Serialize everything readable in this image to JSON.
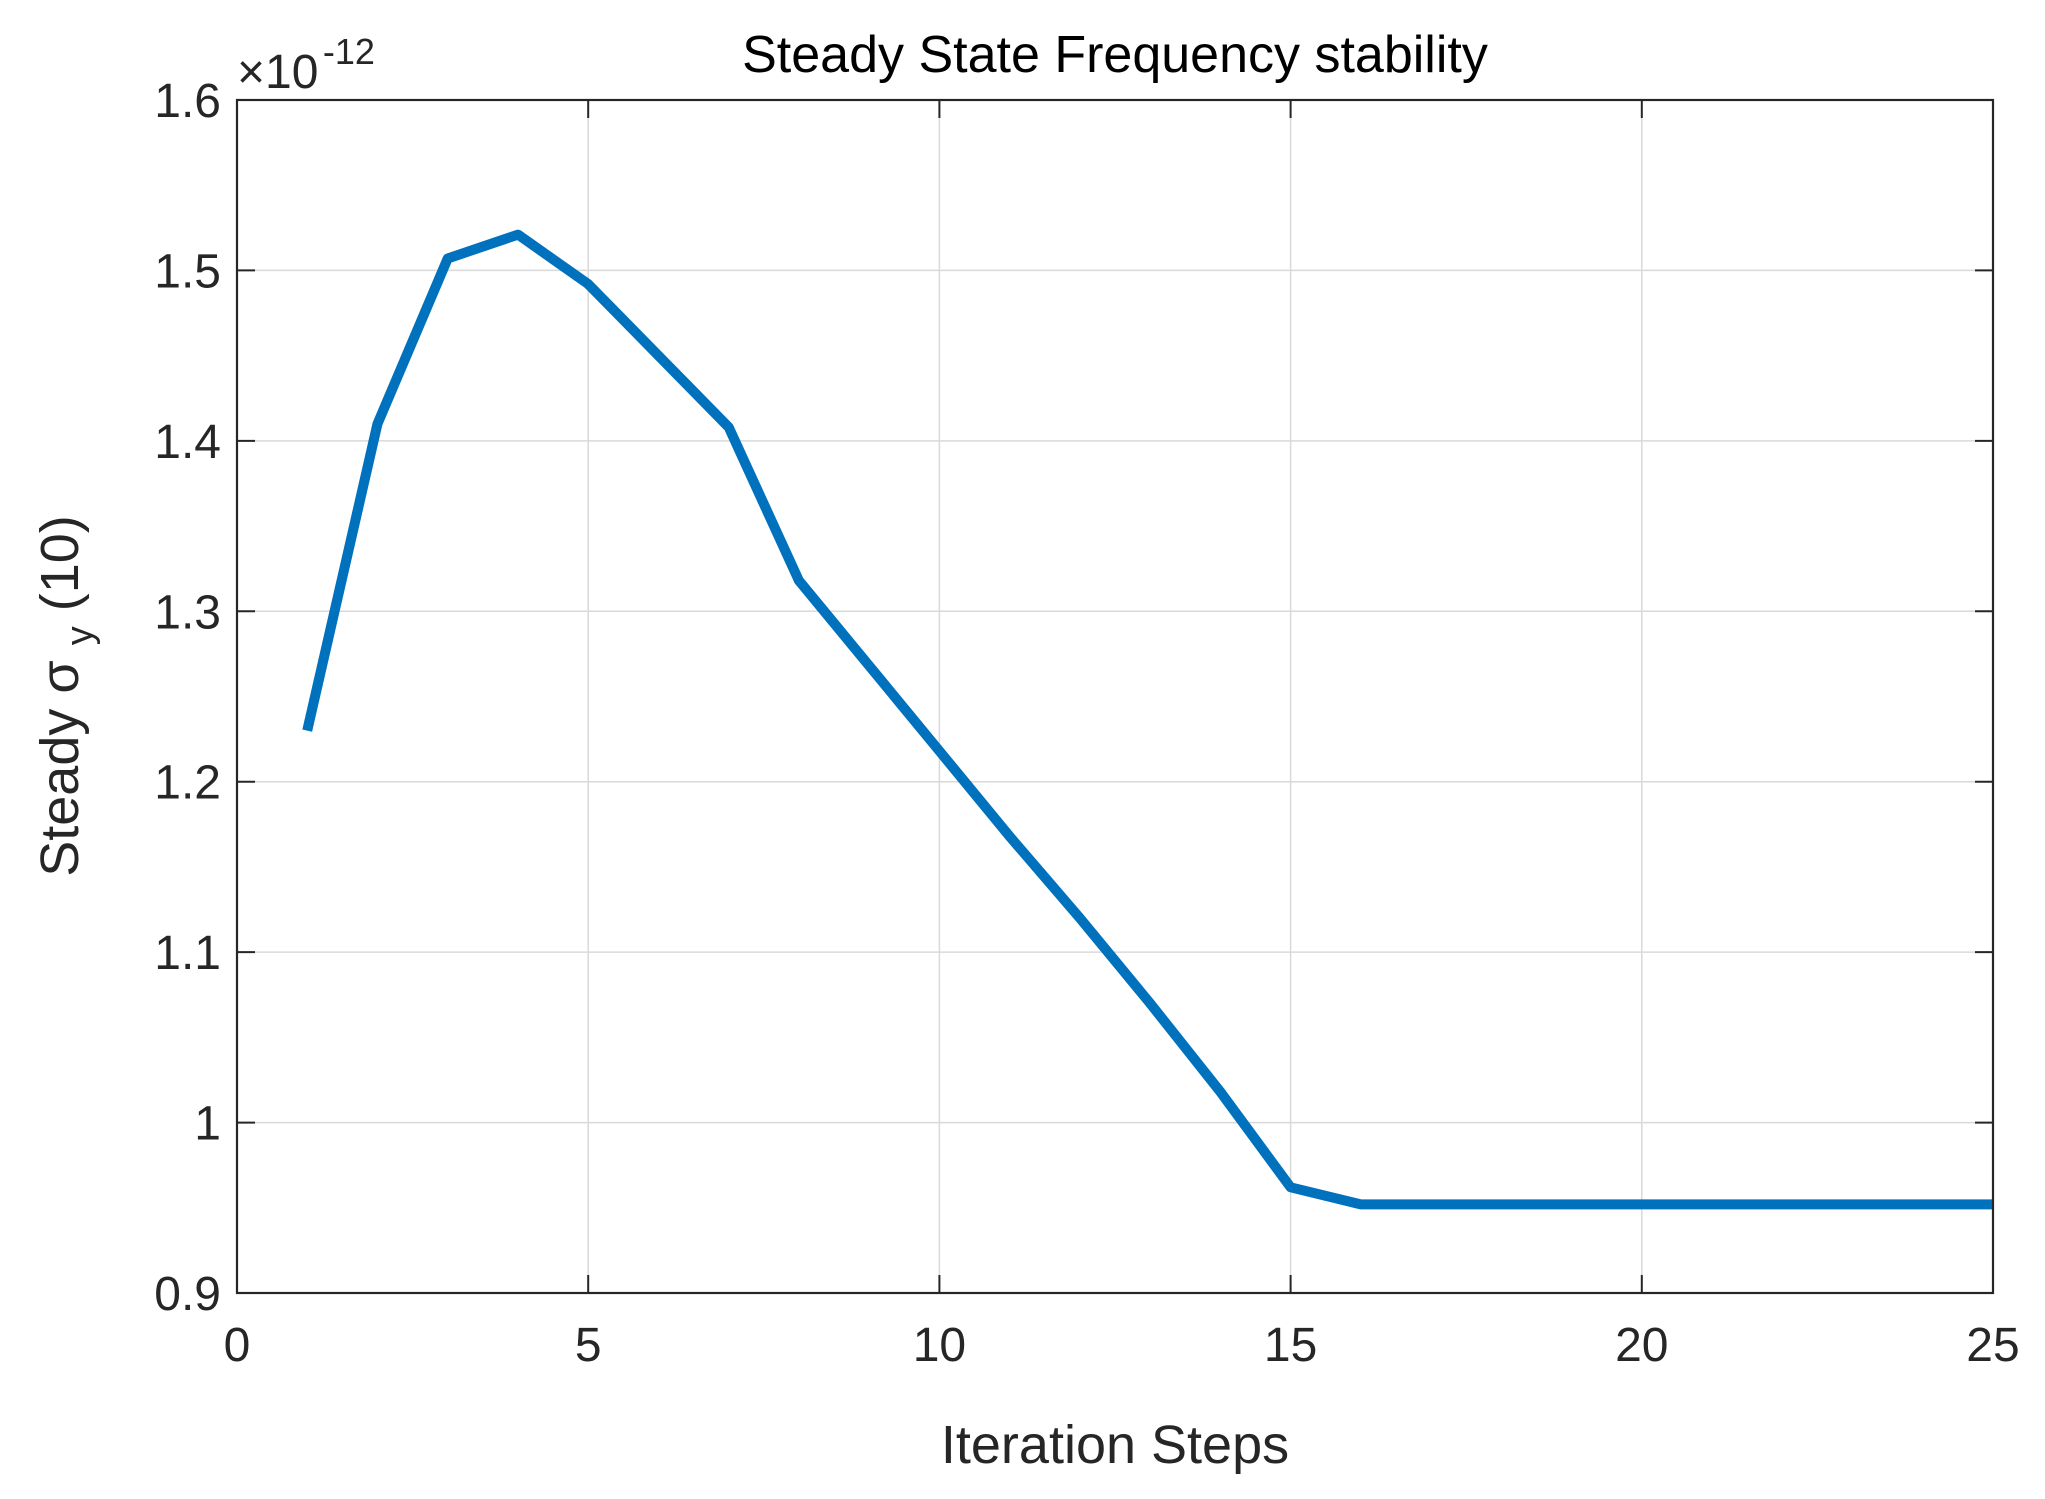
{
  "chart_data": {
    "type": "line",
    "title": "Steady State Frequency stability",
    "xlabel": "Iteration Steps",
    "ylabel": {
      "prefix": "Steady σ",
      "subscript": "y",
      "suffix": "(10)"
    },
    "y_multiplier": {
      "base": "×10",
      "exponent": "-12"
    },
    "xlim": [
      0,
      25
    ],
    "ylim": [
      0.9,
      1.6
    ],
    "x_ticks": [
      0,
      5,
      10,
      15,
      20,
      25
    ],
    "x_tick_labels": [
      "0",
      "5",
      "10",
      "15",
      "20",
      "25"
    ],
    "y_ticks": [
      0.9,
      1.0,
      1.1,
      1.2,
      1.3,
      1.4,
      1.5,
      1.6
    ],
    "y_tick_labels": [
      "0.9",
      "1",
      "1.1",
      "1.2",
      "1.3",
      "1.4",
      "1.5",
      "1.6"
    ],
    "grid": true,
    "series": [
      {
        "color": "#0072BD",
        "x": [
          1,
          2,
          3,
          4,
          5,
          6,
          7,
          8,
          9,
          10,
          11,
          12,
          13,
          14,
          15,
          16,
          17,
          18,
          19,
          20,
          21,
          22,
          23,
          24,
          25
        ],
        "y": [
          1.23,
          1.41,
          1.507,
          1.521,
          1.492,
          1.45,
          1.408,
          1.318,
          1.268,
          1.218,
          1.168,
          1.12,
          1.07,
          1.018,
          0.962,
          0.952,
          0.952,
          0.952,
          0.952,
          0.952,
          0.952,
          0.952,
          0.952,
          0.952,
          0.952
        ]
      }
    ]
  }
}
